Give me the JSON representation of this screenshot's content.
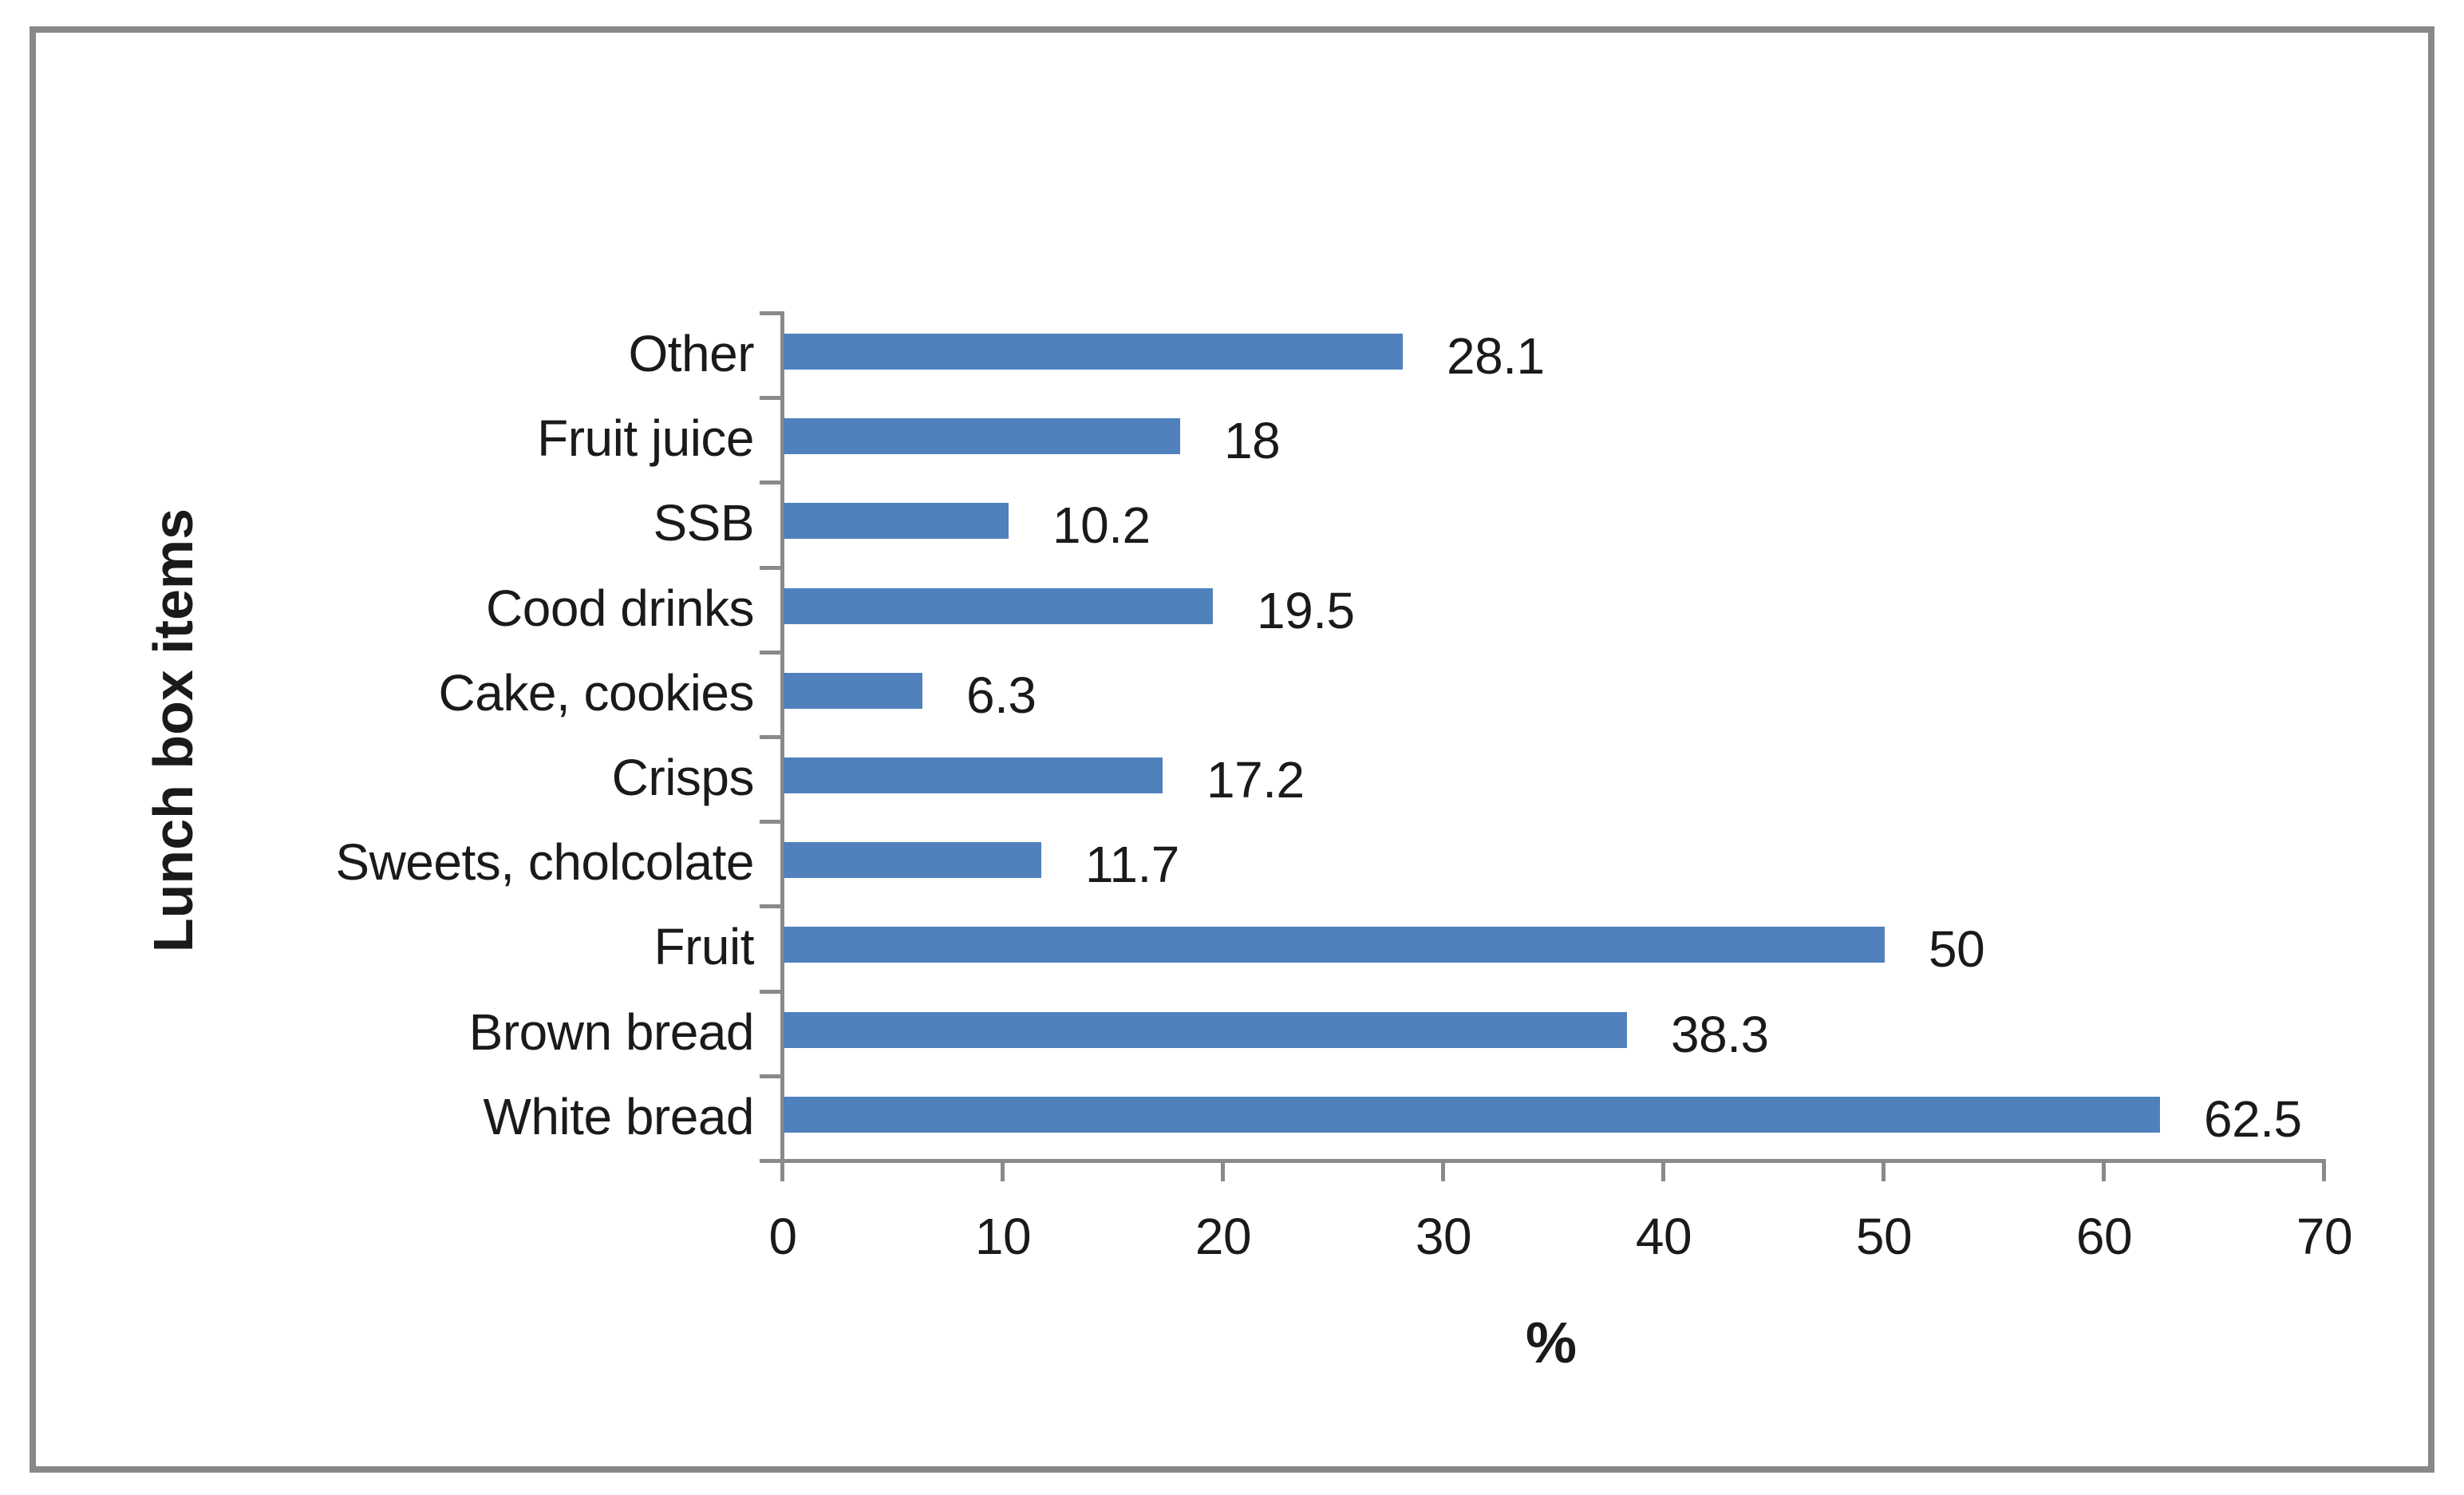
{
  "chart_data": {
    "type": "bar",
    "orientation": "horizontal",
    "title": "",
    "xlabel": "%",
    "ylabel": "Lunch box items",
    "categories": [
      "Other",
      "Fruit juice",
      "SSB",
      "Cood drinks",
      "Cake, cookies",
      "Crisps",
      "Sweets, cholcolate",
      "Fruit",
      "Brown bread",
      "White bread"
    ],
    "values": [
      28.1,
      18,
      10.2,
      19.5,
      6.3,
      17.2,
      11.7,
      50,
      38.3,
      62.5
    ],
    "value_labels": [
      "28.1",
      "18",
      "10.2",
      "19.5",
      "6.3",
      "17.2",
      "11.7",
      "50",
      "38.3",
      "62.5"
    ],
    "xlim": [
      0,
      70
    ],
    "xticks": [
      "0",
      "10",
      "20",
      "30",
      "40",
      "50",
      "60",
      "70"
    ],
    "grid": false,
    "legend": false,
    "data_labels_position": "outside-end",
    "colors": {
      "bar": "#5081BD",
      "axis": "#8a8a8a",
      "frame": "#888888",
      "text": "#1a1a1a",
      "background": "#ffffff"
    }
  }
}
